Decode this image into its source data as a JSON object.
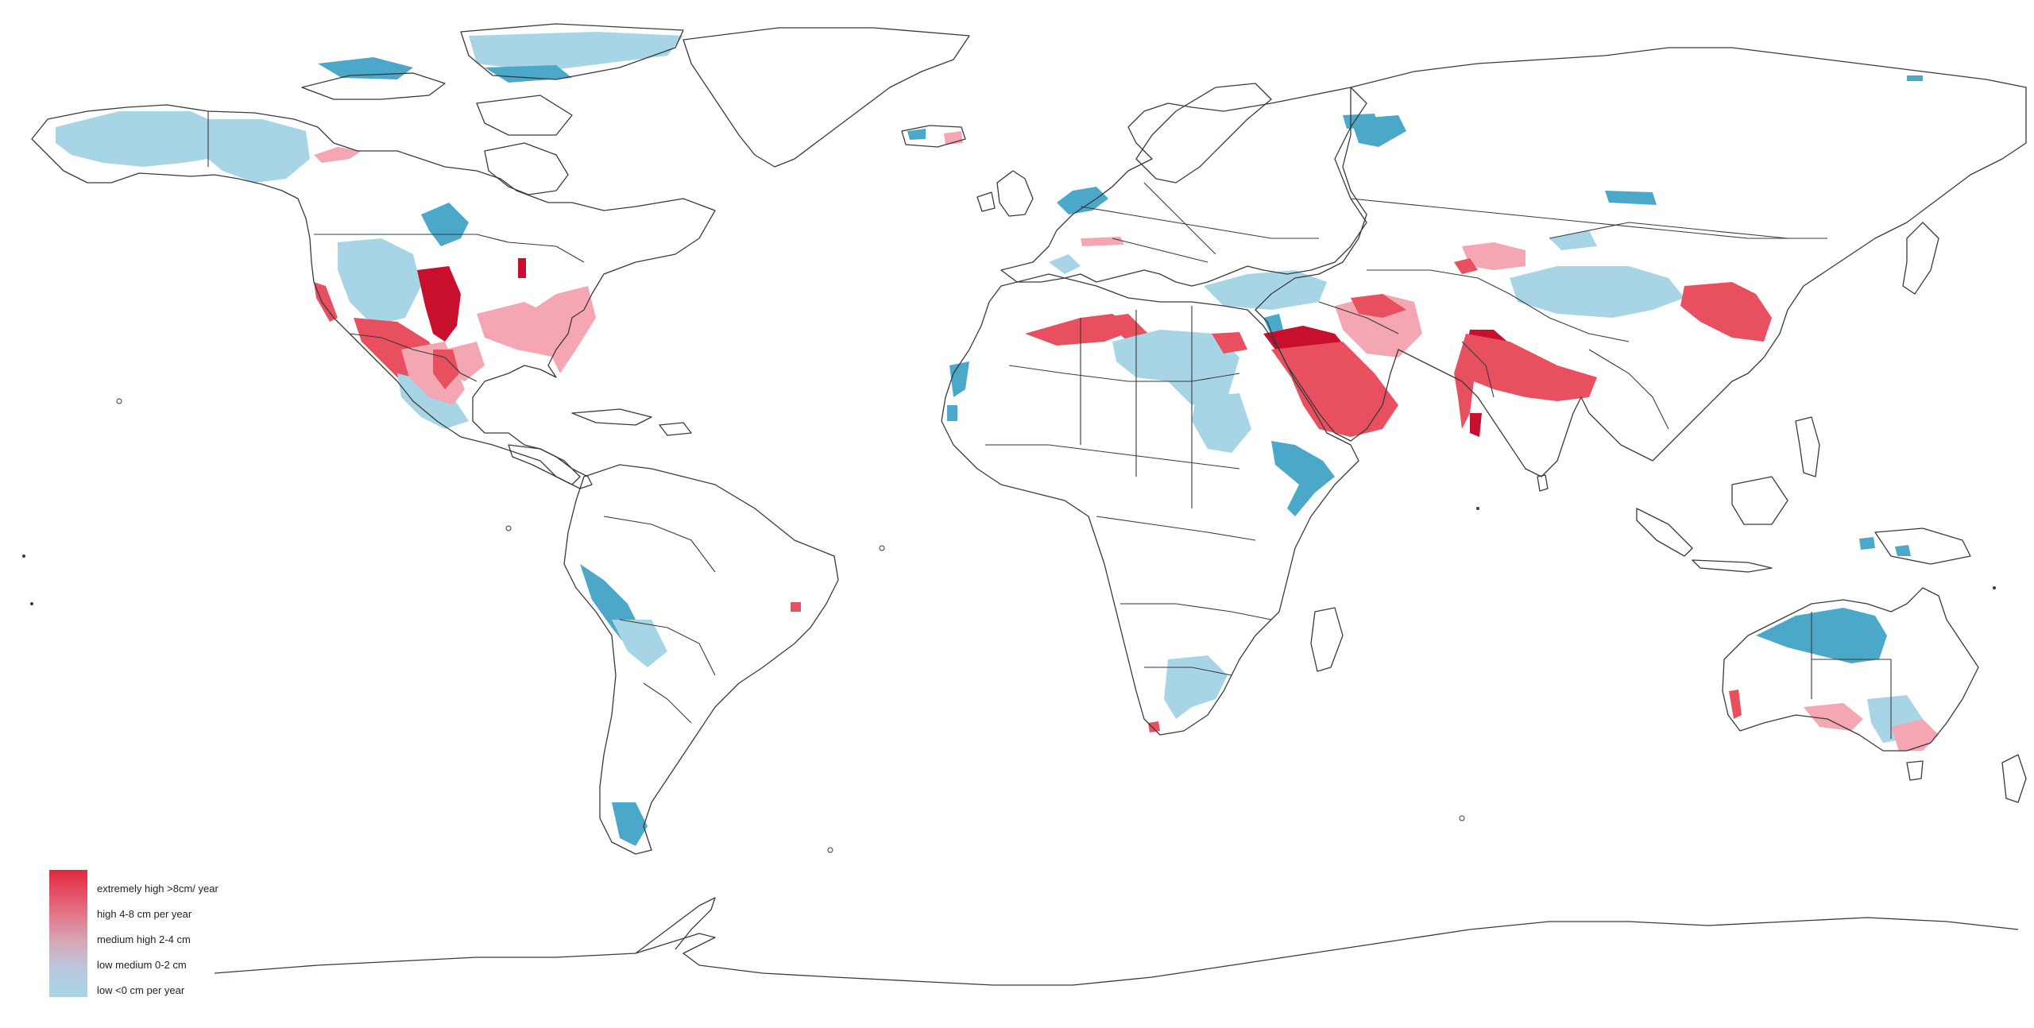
{
  "colors": {
    "extremely_high": "#c8102e",
    "high": "#e8505f",
    "medium_high": "#f4a7b3",
    "low_medium": "#a8d5e6",
    "low": "#4ba8c8",
    "coastline": "#3a3a3a",
    "background": "#ffffff"
  },
  "legend": {
    "items": [
      {
        "label": "extremely high >8cm/ year"
      },
      {
        "label": "high 4-8 cm per year"
      },
      {
        "label": "medium high 2-4 cm"
      },
      {
        "label": "low medium 0-2 cm"
      },
      {
        "label": "low <0 cm per year"
      }
    ]
  }
}
